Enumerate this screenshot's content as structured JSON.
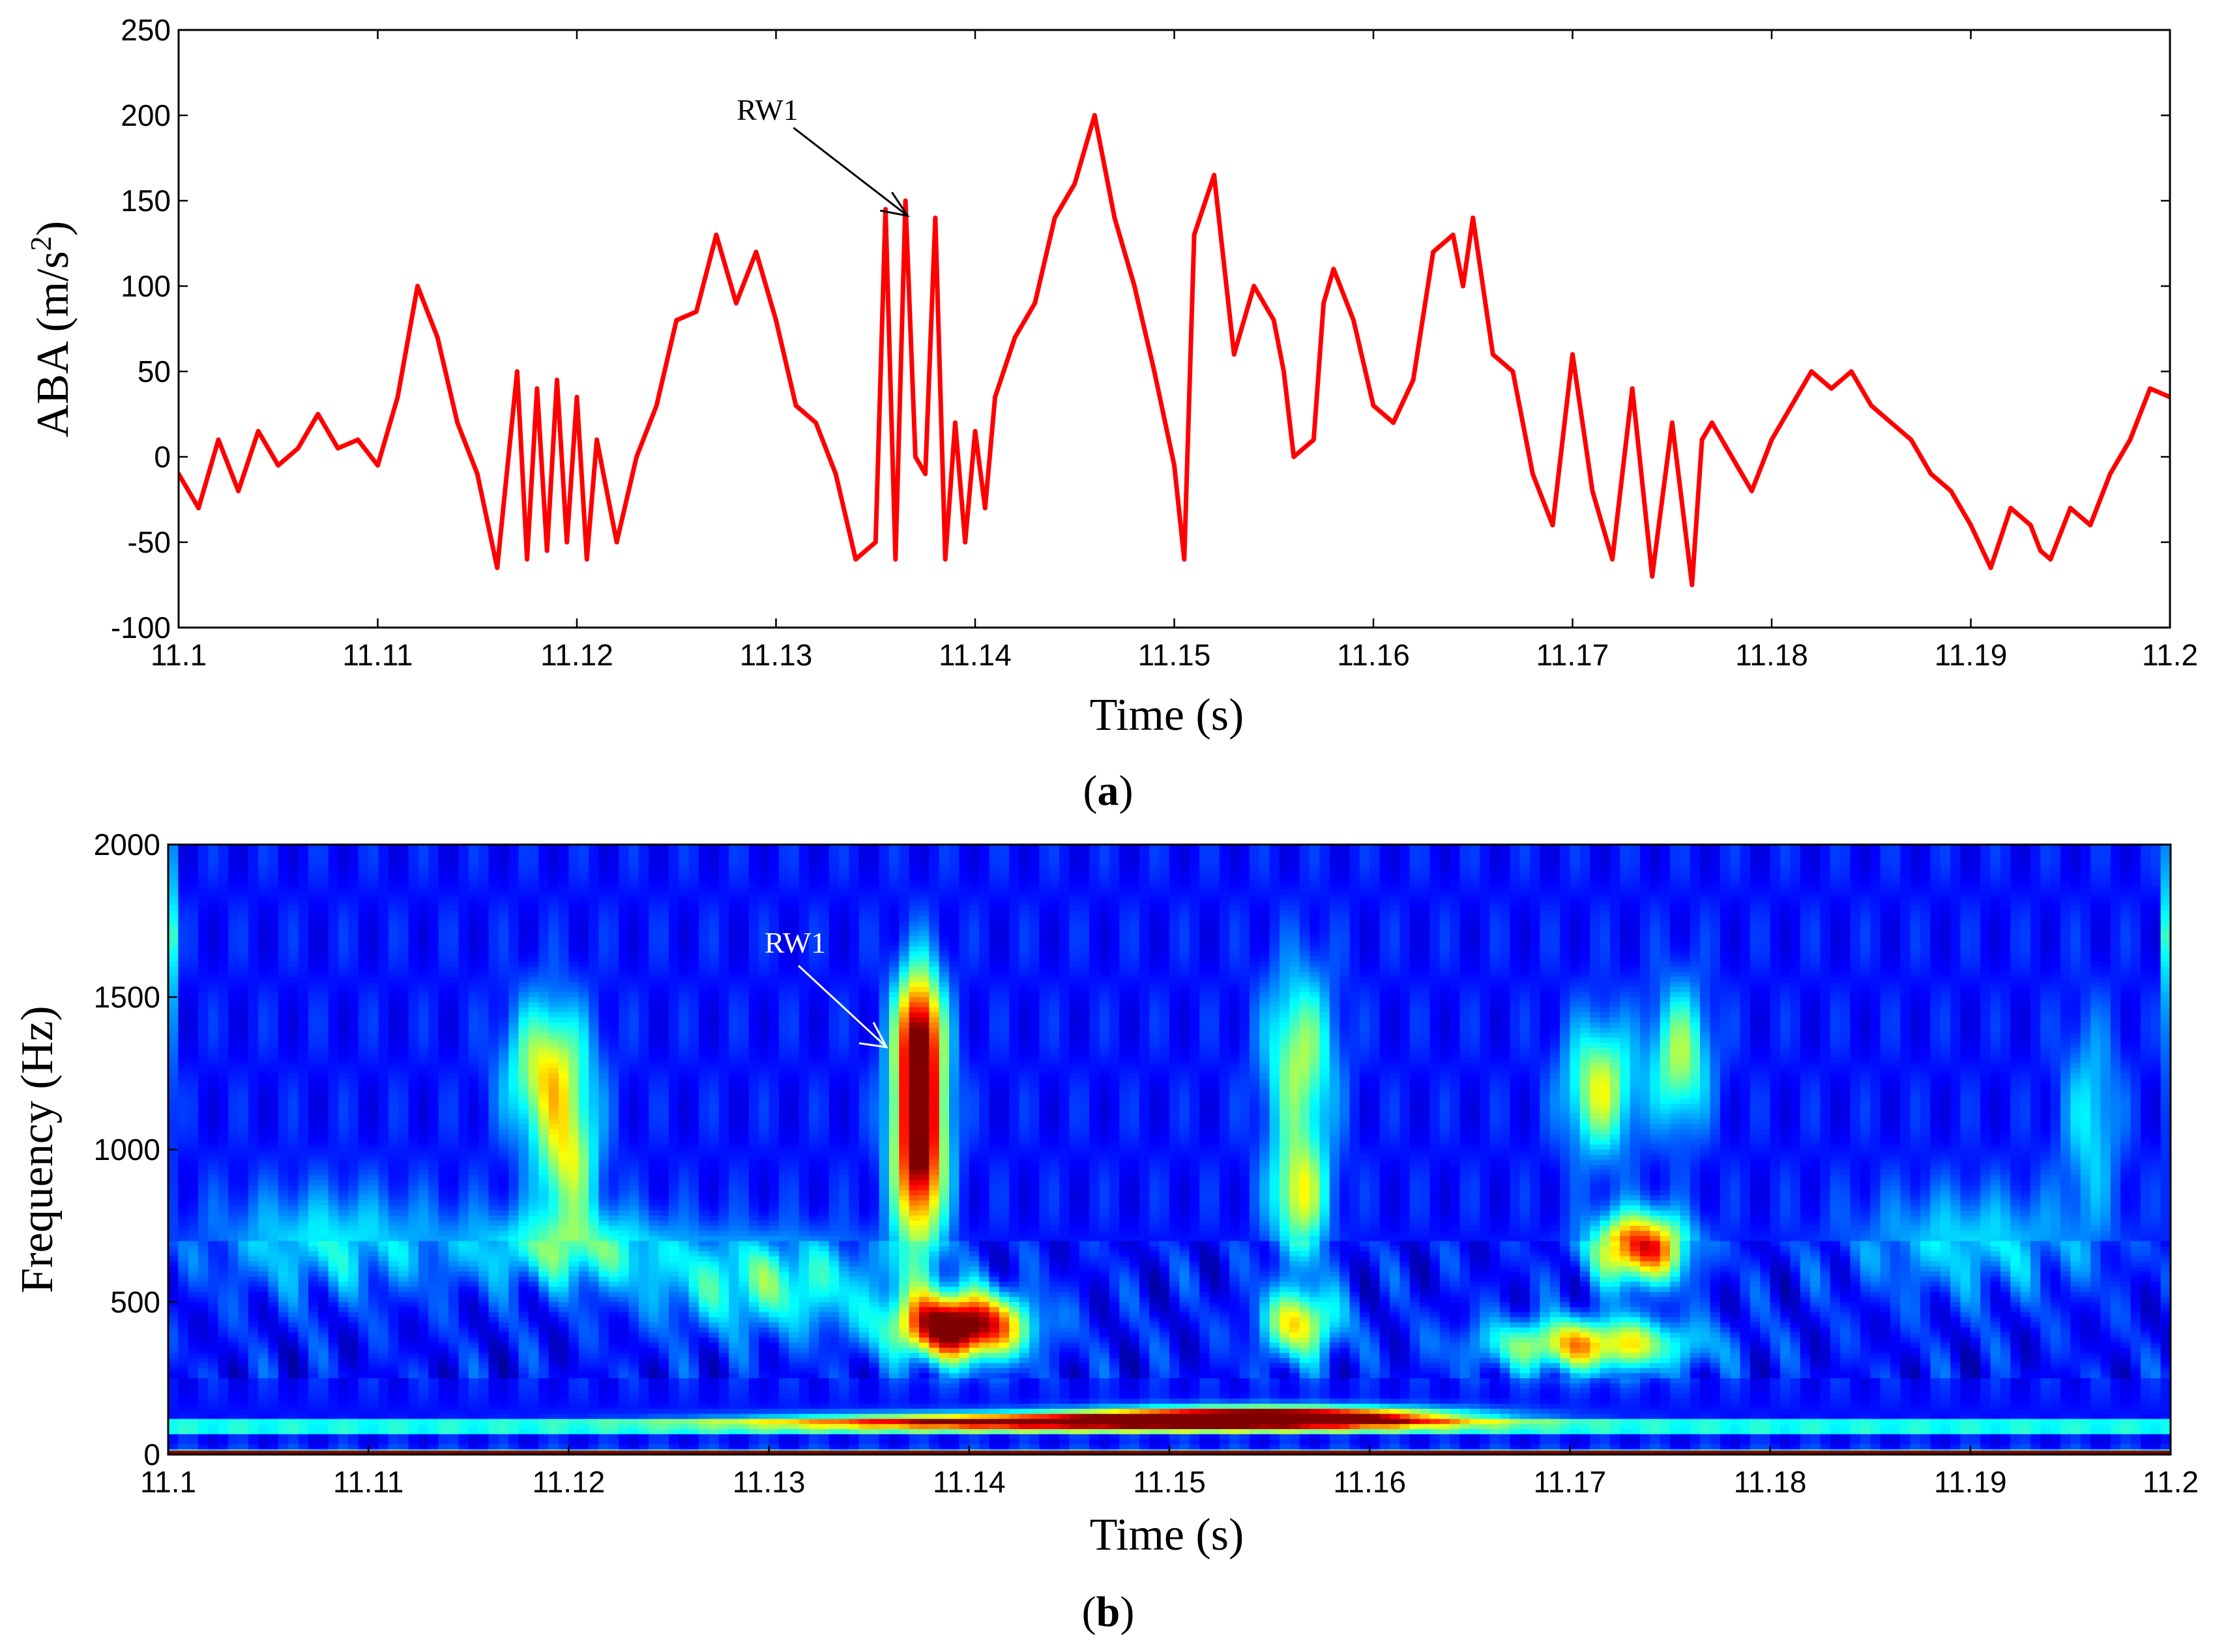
{
  "chart_data": [
    {
      "type": "line",
      "caption": "(a)",
      "caption_letter": "a",
      "xlabel": "Time (s)",
      "ylabel": "ABA (m/s²)",
      "ylabel_main": "ABA (m/s",
      "ylabel_sup": "2",
      "ylabel_tail": ")",
      "xlim": [
        11.1,
        11.2
      ],
      "ylim": [
        -100,
        250
      ],
      "xticks": [
        "11.1",
        "11.11",
        "11.12",
        "11.13",
        "11.14",
        "11.15",
        "11.16",
        "11.17",
        "11.18",
        "11.19",
        "11.2"
      ],
      "yticks": [
        "250",
        "200",
        "150",
        "100",
        "50",
        "0",
        "-50",
        "-100"
      ],
      "grid": false,
      "series": [
        {
          "color": "#ff0000",
          "x": [
            11.1,
            11.101,
            11.102,
            11.103,
            11.104,
            11.105,
            11.106,
            11.107,
            11.108,
            11.109,
            11.11,
            11.111,
            11.112,
            11.113,
            11.114,
            11.115,
            11.116,
            11.117,
            11.1175,
            11.118,
            11.1185,
            11.119,
            11.1195,
            11.12,
            11.1205,
            11.121,
            11.122,
            11.123,
            11.124,
            11.125,
            11.126,
            11.127,
            11.128,
            11.129,
            11.13,
            11.131,
            11.132,
            11.133,
            11.134,
            11.135,
            11.1355,
            11.136,
            11.1365,
            11.137,
            11.1375,
            11.138,
            11.1385,
            11.139,
            11.1395,
            11.14,
            11.1405,
            11.141,
            11.142,
            11.143,
            11.144,
            11.145,
            11.146,
            11.147,
            11.148,
            11.149,
            11.15,
            11.1505,
            11.151,
            11.152,
            11.153,
            11.154,
            11.155,
            11.1555,
            11.156,
            11.157,
            11.1575,
            11.158,
            11.159,
            11.16,
            11.161,
            11.162,
            11.163,
            11.164,
            11.1645,
            11.165,
            11.166,
            11.167,
            11.168,
            11.169,
            11.17,
            11.171,
            11.172,
            11.173,
            11.174,
            11.175,
            11.176,
            11.1765,
            11.177,
            11.178,
            11.179,
            11.18,
            11.181,
            11.182,
            11.183,
            11.184,
            11.185,
            11.186,
            11.187,
            11.188,
            11.189,
            11.19,
            11.191,
            11.192,
            11.193,
            11.1935,
            11.194,
            11.195,
            11.196,
            11.197,
            11.198,
            11.199,
            11.2
          ],
          "y": [
            -10,
            -30,
            10,
            -20,
            15,
            -5,
            5,
            25,
            5,
            10,
            -5,
            35,
            100,
            70,
            20,
            -10,
            -65,
            50,
            -60,
            40,
            -55,
            45,
            -50,
            35,
            -60,
            10,
            -50,
            0,
            30,
            80,
            85,
            130,
            90,
            120,
            80,
            30,
            20,
            -10,
            -60,
            -50,
            145,
            -60,
            150,
            0,
            -10,
            140,
            -60,
            20,
            -50,
            15,
            -30,
            35,
            70,
            90,
            140,
            160,
            200,
            140,
            100,
            50,
            -5,
            -60,
            130,
            165,
            60,
            100,
            80,
            50,
            0,
            10,
            90,
            110,
            80,
            30,
            20,
            45,
            120,
            130,
            100,
            140,
            60,
            50,
            -10,
            -40,
            60,
            -20,
            -60,
            40,
            -70,
            20,
            -75,
            10,
            20,
            0,
            -20,
            10,
            30,
            50,
            40,
            50,
            30,
            20,
            10,
            -10,
            -20,
            -40,
            -65,
            -30,
            -40,
            -55,
            -60,
            -30,
            -40,
            -10,
            10,
            40,
            35
          ]
        }
      ],
      "annotations": [
        {
          "text": "RW1",
          "x": 11.137,
          "y": 145,
          "color": "#000000"
        }
      ]
    },
    {
      "type": "heatmap",
      "caption": "(b)",
      "caption_letter": "b",
      "xlabel": "Time (s)",
      "ylabel": "Frequency (Hz)",
      "xlim": [
        11.1,
        11.2
      ],
      "ylim": [
        0,
        2000
      ],
      "xticks": [
        "11.1",
        "11.11",
        "11.12",
        "11.13",
        "11.14",
        "11.15",
        "11.16",
        "11.17",
        "11.18",
        "11.19",
        "11.2"
      ],
      "yticks": [
        "2000",
        "1500",
        "1000",
        "500",
        "0"
      ],
      "colormap": "jet",
      "colors": {
        "low": "#00008f",
        "mid": "#00ffff",
        "high": "#ff0000"
      },
      "hotspots": [
        {
          "x": 11.1375,
          "y": 1050,
          "sx": 0.0009,
          "sy": 250,
          "v": 1.0
        },
        {
          "x": 11.1375,
          "y": 1400,
          "sx": 0.0008,
          "sy": 150,
          "v": 0.55
        },
        {
          "x": 11.1395,
          "y": 420,
          "sx": 0.0022,
          "sy": 75,
          "v": 1.0
        },
        {
          "x": 11.119,
          "y": 1250,
          "sx": 0.0014,
          "sy": 160,
          "v": 0.5
        },
        {
          "x": 11.12,
          "y": 950,
          "sx": 0.001,
          "sy": 140,
          "v": 0.4
        },
        {
          "x": 11.12,
          "y": 680,
          "sx": 0.0035,
          "sy": 90,
          "v": 0.3
        },
        {
          "x": 11.1565,
          "y": 1300,
          "sx": 0.0012,
          "sy": 200,
          "v": 0.4
        },
        {
          "x": 11.1565,
          "y": 850,
          "sx": 0.001,
          "sy": 140,
          "v": 0.45
        },
        {
          "x": 11.1565,
          "y": 430,
          "sx": 0.0013,
          "sy": 80,
          "v": 0.5
        },
        {
          "x": 11.1735,
          "y": 680,
          "sx": 0.0016,
          "sy": 80,
          "v": 0.75
        },
        {
          "x": 11.1715,
          "y": 1200,
          "sx": 0.0012,
          "sy": 150,
          "v": 0.45
        },
        {
          "x": 11.1755,
          "y": 1300,
          "sx": 0.001,
          "sy": 160,
          "v": 0.4
        },
        {
          "x": 11.171,
          "y": 360,
          "sx": 0.0035,
          "sy": 60,
          "v": 0.55
        },
        {
          "x": 11.155,
          "y": 125,
          "sx": 0.006,
          "sy": 22,
          "v": 1.0
        },
        {
          "x": 11.145,
          "y": 110,
          "sx": 0.01,
          "sy": 18,
          "v": 0.75
        },
        {
          "x": 11.13,
          "y": 560,
          "sx": 0.004,
          "sy": 110,
          "v": 0.3
        },
        {
          "x": 11.108,
          "y": 700,
          "sx": 0.004,
          "sy": 120,
          "v": 0.22
        },
        {
          "x": 11.19,
          "y": 700,
          "sx": 0.004,
          "sy": 120,
          "v": 0.2
        },
        {
          "x": 11.196,
          "y": 1100,
          "sx": 0.001,
          "sy": 220,
          "v": 0.22
        }
      ],
      "annotations": [
        {
          "text": "RW1",
          "x": 11.1375,
          "y": 1400,
          "color": "#ffffff"
        }
      ]
    }
  ]
}
